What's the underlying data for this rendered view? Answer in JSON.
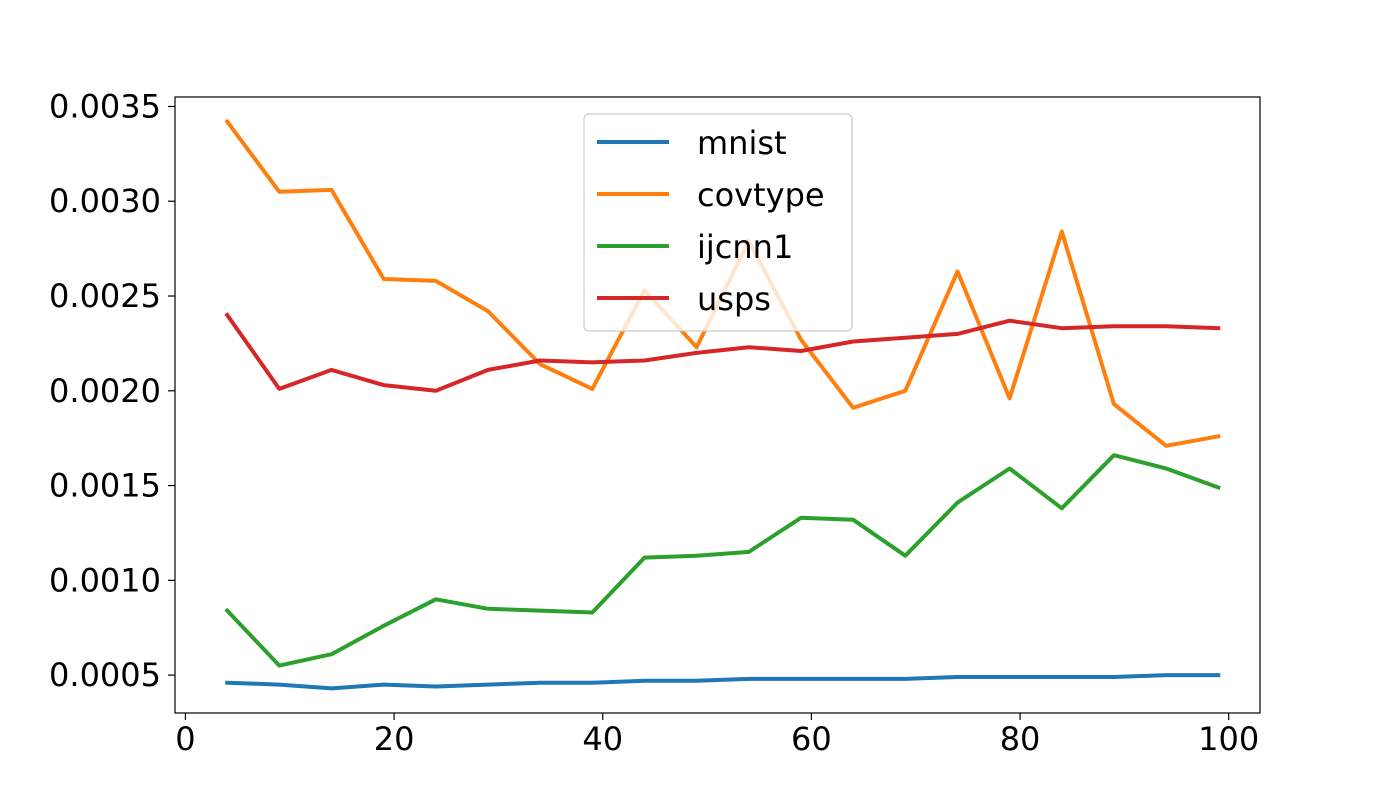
{
  "chart_data": {
    "type": "line",
    "title": "",
    "xlabel": "",
    "ylabel": "",
    "xlim": [
      -1,
      103
    ],
    "ylim": [
      0.0003,
      0.00355
    ],
    "x_ticks": [
      0,
      20,
      40,
      60,
      80,
      100
    ],
    "y_ticks": [
      0.0005,
      0.001,
      0.0015,
      0.002,
      0.0025,
      0.003,
      0.0035
    ],
    "x_tick_labels": [
      "0",
      "20",
      "40",
      "60",
      "80",
      "100"
    ],
    "y_tick_labels": [
      "0.0005",
      "0.0010",
      "0.0015",
      "0.0020",
      "0.0025",
      "0.0030",
      "0.0035"
    ],
    "grid": false,
    "legend_position": "top-center",
    "x": [
      4,
      9,
      14,
      19,
      24,
      29,
      34,
      39,
      44,
      49,
      54,
      59,
      64,
      69,
      74,
      79,
      84,
      89,
      94,
      99
    ],
    "series": [
      {
        "name": "mnist",
        "color": "#1f77b4",
        "values": [
          0.00046,
          0.00045,
          0.00043,
          0.00045,
          0.00044,
          0.00045,
          0.00046,
          0.00046,
          0.00047,
          0.00047,
          0.00048,
          0.00048,
          0.00048,
          0.00048,
          0.00049,
          0.00049,
          0.00049,
          0.00049,
          0.0005,
          0.0005
        ]
      },
      {
        "name": "covtype",
        "color": "#ff7f0e",
        "values": [
          0.00342,
          0.00305,
          0.00306,
          0.00259,
          0.00258,
          0.00242,
          0.00214,
          0.00201,
          0.00253,
          0.00223,
          0.00279,
          0.00227,
          0.00191,
          0.002,
          0.00263,
          0.00196,
          0.00284,
          0.00193,
          0.00171,
          0.00176
        ]
      },
      {
        "name": "ijcnn1",
        "color": "#2ca02c",
        "values": [
          0.00084,
          0.00055,
          0.00061,
          0.00076,
          0.0009,
          0.00085,
          0.00084,
          0.00083,
          0.00112,
          0.00113,
          0.00115,
          0.00133,
          0.00132,
          0.00113,
          0.00141,
          0.00159,
          0.00138,
          0.00166,
          0.00159,
          0.00149
        ]
      },
      {
        "name": "usps",
        "color": "#d62728",
        "values": [
          0.0024,
          0.00201,
          0.00211,
          0.00203,
          0.002,
          0.00211,
          0.00216,
          0.00215,
          0.00216,
          0.0022,
          0.00223,
          0.00221,
          0.00226,
          0.00228,
          0.0023,
          0.00237,
          0.00233,
          0.00234,
          0.00234,
          0.00233
        ]
      }
    ]
  }
}
